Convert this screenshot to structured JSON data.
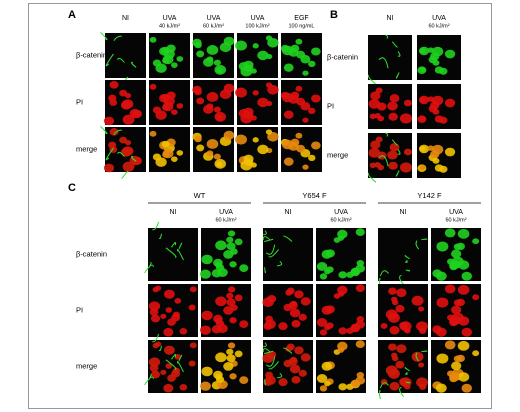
{
  "panels": [
    {
      "label": "A",
      "rows": [
        "β-catenin",
        "PI",
        "merge"
      ],
      "groups": [
        {
          "columns": [
            {
              "name": "NI"
            },
            {
              "name": "UVA",
              "dose": "40 kJ/m²"
            },
            {
              "name": "UVA",
              "dose": "60 kJ/m²"
            },
            {
              "name": "UVA",
              "dose": "100 kJ/m²"
            },
            {
              "name": "EGF",
              "dose": "100 ng/mL"
            }
          ]
        }
      ]
    },
    {
      "label": "B",
      "rows": [
        "β-catenin",
        "PI",
        "merge"
      ],
      "groups": [
        {
          "columns": [
            {
              "name": "NI"
            },
            {
              "name": "UVA",
              "dose": "60 kJ/m²"
            }
          ]
        }
      ]
    },
    {
      "label": "C",
      "rows": [
        "β-catenin",
        "PI",
        "merge"
      ],
      "groups": [
        {
          "name": "WT",
          "columns": [
            {
              "name": "NI"
            },
            {
              "name": "UVA",
              "dose": "60 kJ/m²"
            }
          ]
        },
        {
          "name": "Y654 F",
          "columns": [
            {
              "name": "NI"
            },
            {
              "name": "UVA",
              "dose": "60 kJ/m²"
            }
          ]
        },
        {
          "name": "Y142 F",
          "columns": [
            {
              "name": "NI"
            },
            {
              "name": "UVA",
              "dose": "60 kJ/m²"
            }
          ]
        }
      ]
    }
  ]
}
